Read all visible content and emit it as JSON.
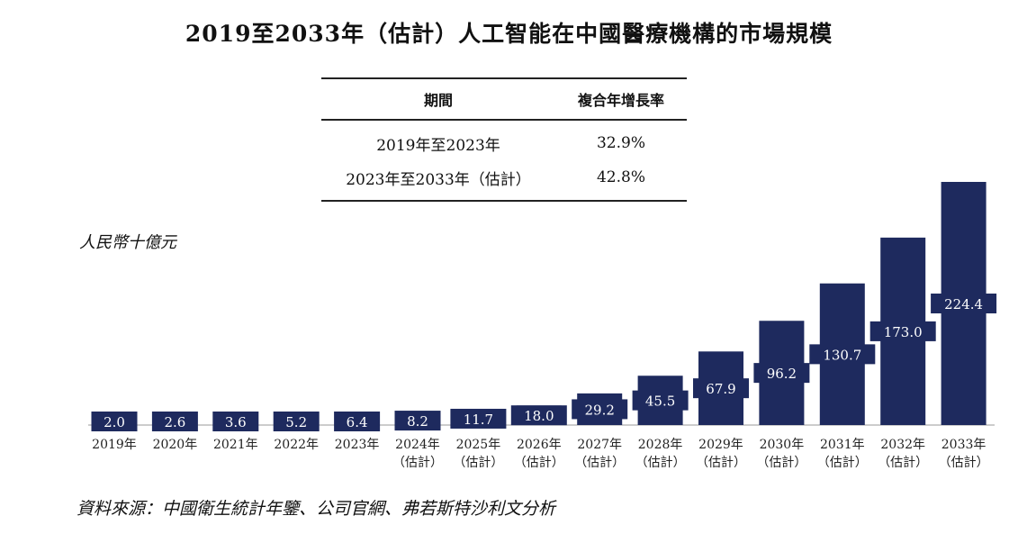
{
  "chart_data": {
    "type": "bar",
    "title": "2019至2033年（估計）人工智能在中國醫療機構的市場規模",
    "ylabel": "人民幣十億元",
    "categories": [
      [
        "2019年",
        ""
      ],
      [
        "2020年",
        ""
      ],
      [
        "2021年",
        ""
      ],
      [
        "2022年",
        ""
      ],
      [
        "2023年",
        ""
      ],
      [
        "2024年",
        "（估計）"
      ],
      [
        "2025年",
        "（估計）"
      ],
      [
        "2026年",
        "（估計）"
      ],
      [
        "2027年",
        "（估計）"
      ],
      [
        "2028年",
        "（估計）"
      ],
      [
        "2029年",
        "（估計）"
      ],
      [
        "2030年",
        "（估計）"
      ],
      [
        "2031年",
        "（估計）"
      ],
      [
        "2032年",
        "（估計）"
      ],
      [
        "2033年",
        "（估計）"
      ]
    ],
    "values": [
      2.0,
      2.6,
      3.6,
      5.2,
      6.4,
      8.2,
      11.7,
      18.0,
      29.2,
      45.5,
      67.9,
      96.2,
      130.7,
      173.0,
      224.4
    ],
    "ylim": [
      0,
      224.4
    ],
    "grid": false,
    "bar_color": "#1e2a5e",
    "cagr_table": {
      "headers": [
        "期間",
        "複合年增長率"
      ],
      "rows": [
        [
          "2019年至2023年",
          "32.9%"
        ],
        [
          "2023年至2033年（估計）",
          "42.8%"
        ]
      ]
    },
    "source": "資料來源：中國衛生統計年鑒、公司官網、弗若斯特沙利文分析"
  }
}
